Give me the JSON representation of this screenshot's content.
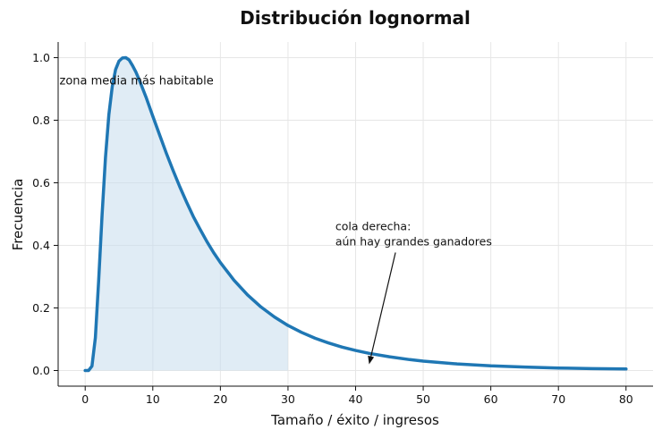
{
  "chart_data": {
    "type": "area",
    "title": "Distribución lognormal",
    "xlabel": "Tamaño / éxito / ingresos",
    "ylabel": "Frecuencia",
    "xlim": [
      -4,
      84
    ],
    "ylim": [
      -0.05,
      1.05
    ],
    "xticks": [
      "0",
      "10",
      "20",
      "30",
      "40",
      "50",
      "60",
      "70",
      "80"
    ],
    "yticks": [
      "0.0",
      "0.2",
      "0.4",
      "0.6",
      "0.8",
      "1.0"
    ],
    "grid": true,
    "series": [
      {
        "color": "#1f77b4",
        "fill_color": "#c6dcec",
        "fill_range": [
          0,
          30
        ],
        "x": [
          0,
          0.5,
          1,
          1.5,
          2,
          2.5,
          3,
          3.5,
          4,
          4.5,
          5,
          5.5,
          6,
          6.5,
          7,
          7.5,
          8,
          9,
          10,
          11,
          12,
          13,
          14,
          15,
          16,
          17,
          18,
          19,
          20,
          22,
          24,
          26,
          28,
          30,
          32,
          34,
          36,
          38,
          40,
          42,
          45,
          48,
          50,
          55,
          60,
          65,
          70,
          75,
          80
        ],
        "y": [
          0.0,
          0.0,
          0.014,
          0.105,
          0.288,
          0.497,
          0.681,
          0.818,
          0.908,
          0.962,
          0.989,
          0.999,
          1.0,
          0.993,
          0.975,
          0.954,
          0.929,
          0.874,
          0.813,
          0.753,
          0.695,
          0.639,
          0.587,
          0.538,
          0.492,
          0.451,
          0.412,
          0.377,
          0.345,
          0.289,
          0.242,
          0.203,
          0.171,
          0.144,
          0.122,
          0.103,
          0.088,
          0.075,
          0.064,
          0.055,
          0.044,
          0.035,
          0.03,
          0.021,
          0.015,
          0.011,
          0.008,
          0.006,
          0.005
        ]
      }
    ],
    "annotations": [
      {
        "text": "zona media más habitable",
        "x": -3.8,
        "y": 0.915
      },
      {
        "lines": [
          "cola derecha:",
          "aún hay grandes ganadores"
        ],
        "x": 37,
        "y": 0.4,
        "arrow_to": [
          42,
          0.02
        ]
      }
    ]
  }
}
